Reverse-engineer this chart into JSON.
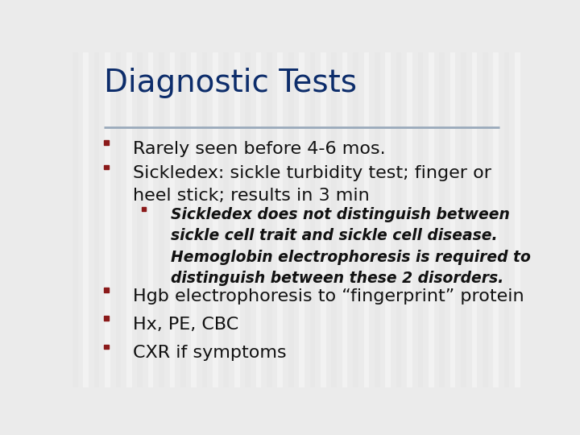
{
  "title": "Diagnostic Tests",
  "title_color": "#0d2d6b",
  "title_fontsize": 28,
  "background_color": "#ebebeb",
  "stripe_color1": "#e8e8e8",
  "stripe_color2": "#f2f2f2",
  "divider_color": "#9aaabb",
  "bullet_color": "#8b1a1a",
  "bullet_level1": [
    "Rarely seen before 4-6 mos.",
    "Sickledex: sickle turbidity test; finger or\nheel stick; results in 3 min"
  ],
  "bullet_level2_bold_italic": "Sickledex does not distinguish between\nsickle cell trait and sickle cell disease.\nHemoglobin electrophoresis is required to\ndistinguish between these 2 disorders.",
  "bullet_level1_bottom": [
    "Hgb electrophoresis to “fingerprint” protein",
    "Hx, PE, CBC",
    "CXR if symptoms"
  ],
  "text_color": "#111111",
  "fontsize_level1": 16,
  "fontsize_level2": 13.5,
  "bullet_size": 0.01
}
